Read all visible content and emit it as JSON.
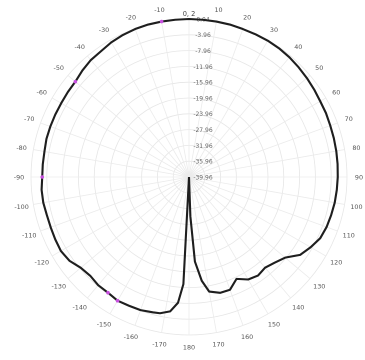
{
  "chart_data": {
    "type": "polar-line",
    "title": "0, 2",
    "angle_unit": "degrees",
    "angle_direction": "clockwise",
    "zero_at": "top",
    "angle_ticks": [
      -170,
      -160,
      -150,
      -140,
      -130,
      -120,
      -110,
      -100,
      -90,
      -80,
      -70,
      -60,
      -50,
      -40,
      -30,
      -20,
      -10,
      10,
      20,
      30,
      40,
      50,
      60,
      70,
      80,
      90,
      100,
      110,
      120,
      130,
      140,
      150,
      160,
      170,
      180
    ],
    "radial_ticks": [
      "0.04",
      "-3.96",
      "-7.96",
      "-11.96",
      "-15.96",
      "-19.96",
      "-23.96",
      "-27.96",
      "-31.96",
      "-35.96",
      "-39.96"
    ],
    "rlim": [
      -39.96,
      0.04
    ],
    "grid": true,
    "legend": "none",
    "colors": {
      "line": "#1e1e1e",
      "marker": "#c850e0",
      "grid": "#e6e6e6",
      "labels": "#555555"
    },
    "series": [
      {
        "angles": [
          -180,
          -177,
          -175,
          -172,
          -168,
          -165,
          -160,
          -155,
          -150,
          -145,
          -140,
          -135,
          -130,
          -125,
          -120,
          -115,
          -110,
          -105,
          -100,
          -95,
          -90,
          -85,
          -80,
          -75,
          -70,
          -65,
          -60,
          -55,
          -50,
          -45,
          -40,
          -35,
          -30,
          -25,
          -20,
          -15,
          -10,
          -5,
          0,
          5,
          10,
          15,
          20,
          25,
          30,
          35,
          40,
          45,
          50,
          55,
          60,
          65,
          70,
          75,
          80,
          85,
          90,
          95,
          100,
          105,
          110,
          115,
          120,
          125,
          130,
          135,
          140,
          145,
          150,
          155,
          160,
          165,
          170,
          173,
          176,
          178,
          180
        ],
        "values": [
          -39.96,
          -12.8,
          -8.0,
          -5.6,
          -4.7,
          -4.5,
          -4.1,
          -4.0,
          -3.8,
          -4.2,
          -4.2,
          -4.6,
          -4.2,
          -3.0,
          -2.5,
          -2.6,
          -2.7,
          -2.7,
          -2.5,
          -2.5,
          -2.8,
          -2.8,
          -2.8,
          -2.6,
          -2.6,
          -2.6,
          -2.6,
          -2.5,
          -2.4,
          -1.8,
          -1.3,
          -1.1,
          -0.6,
          -0.3,
          -0.1,
          0.0,
          0.0,
          0.0,
          0.04,
          0.0,
          0.0,
          0.0,
          -0.1,
          -0.1,
          -0.1,
          -0.2,
          -0.4,
          -0.7,
          -1.0,
          -1.3,
          -1.6,
          -1.7,
          -1.9,
          -2.0,
          -2.1,
          -2.2,
          -2.3,
          -2.4,
          -2.5,
          -2.7,
          -2.9,
          -3.3,
          -4.4,
          -5.6,
          -8.2,
          -9.3,
          -10.0,
          -9.5,
          -10.0,
          -11.5,
          -9.6,
          -9.6,
          -10.5,
          -13.5,
          -18.5,
          -30.0,
          -39.96
        ],
        "marker_angles": [
          -150,
          -145,
          -90,
          -50,
          -10
        ]
      }
    ]
  }
}
